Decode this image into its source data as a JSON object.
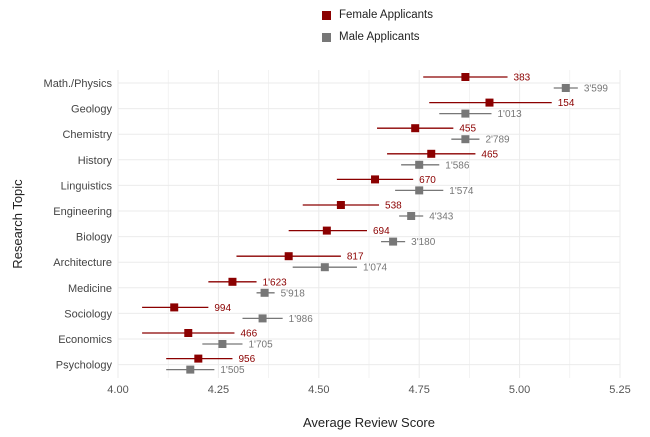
{
  "chart_data": {
    "type": "scatter",
    "title": "",
    "xlabel": "Average Review Score",
    "ylabel": "Research Topic",
    "xlim": [
      4.0,
      5.25
    ],
    "xticks": [
      "4.00",
      "4.25",
      "4.50",
      "4.75",
      "5.00",
      "5.25"
    ],
    "grid": true,
    "legend_position": "top",
    "series": [
      {
        "name": "Female Applicants",
        "color": "#8b0000"
      },
      {
        "name": "Male Applicants",
        "color": "#777777"
      }
    ],
    "categories": [
      "Math./Physics",
      "Geology",
      "Chemistry",
      "History",
      "Linguistics",
      "Engineering",
      "Biology",
      "Architecture",
      "Medicine",
      "Sociology",
      "Economics",
      "Psychology"
    ],
    "female": [
      {
        "mean": 4.865,
        "lo": 4.76,
        "hi": 4.97,
        "n": "383"
      },
      {
        "mean": 4.925,
        "lo": 4.775,
        "hi": 5.08,
        "n": "154"
      },
      {
        "mean": 4.74,
        "lo": 4.645,
        "hi": 4.835,
        "n": "455"
      },
      {
        "mean": 4.78,
        "lo": 4.67,
        "hi": 4.89,
        "n": "465"
      },
      {
        "mean": 4.64,
        "lo": 4.545,
        "hi": 4.735,
        "n": "670"
      },
      {
        "mean": 4.555,
        "lo": 4.46,
        "hi": 4.65,
        "n": "538"
      },
      {
        "mean": 4.52,
        "lo": 4.425,
        "hi": 4.62,
        "n": "694"
      },
      {
        "mean": 4.425,
        "lo": 4.295,
        "hi": 4.555,
        "n": "817"
      },
      {
        "mean": 4.285,
        "lo": 4.225,
        "hi": 4.345,
        "n": "1'623"
      },
      {
        "mean": 4.14,
        "lo": 4.06,
        "hi": 4.225,
        "n": "994"
      },
      {
        "mean": 4.175,
        "lo": 4.06,
        "hi": 4.29,
        "n": "466"
      },
      {
        "mean": 4.2,
        "lo": 4.12,
        "hi": 4.285,
        "n": "956"
      }
    ],
    "male": [
      {
        "mean": 5.115,
        "lo": 5.085,
        "hi": 5.145,
        "n": "3'599"
      },
      {
        "mean": 4.865,
        "lo": 4.8,
        "hi": 4.93,
        "n": "1'013"
      },
      {
        "mean": 4.865,
        "lo": 4.83,
        "hi": 4.9,
        "n": "2'789"
      },
      {
        "mean": 4.75,
        "lo": 4.705,
        "hi": 4.8,
        "n": "1'586"
      },
      {
        "mean": 4.75,
        "lo": 4.69,
        "hi": 4.81,
        "n": "1'574"
      },
      {
        "mean": 4.73,
        "lo": 4.7,
        "hi": 4.76,
        "n": "4'343"
      },
      {
        "mean": 4.685,
        "lo": 4.655,
        "hi": 4.715,
        "n": "3'180"
      },
      {
        "mean": 4.515,
        "lo": 4.435,
        "hi": 4.595,
        "n": "1'074"
      },
      {
        "mean": 4.365,
        "lo": 4.345,
        "hi": 4.39,
        "n": "5'918"
      },
      {
        "mean": 4.36,
        "lo": 4.31,
        "hi": 4.41,
        "n": "1'986"
      },
      {
        "mean": 4.26,
        "lo": 4.21,
        "hi": 4.31,
        "n": "1'705"
      },
      {
        "mean": 4.18,
        "lo": 4.12,
        "hi": 4.24,
        "n": "1'505"
      }
    ]
  }
}
